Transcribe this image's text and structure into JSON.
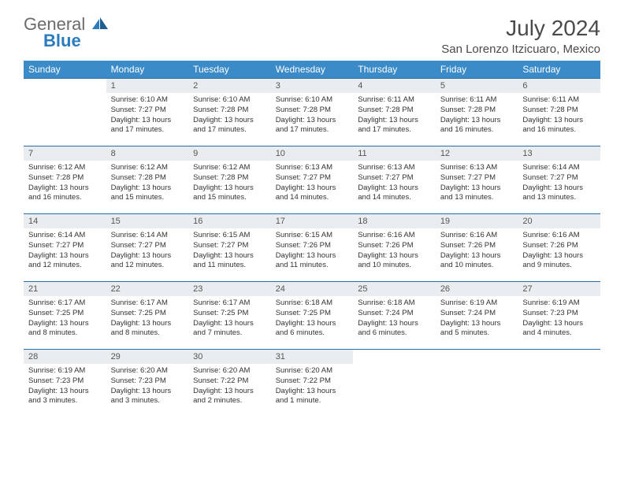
{
  "logo": {
    "part1": "General",
    "part2": "Blue"
  },
  "title": "July 2024",
  "location": "San Lorenzo Itzicuaro, Mexico",
  "colors": {
    "header_bg": "#3b8bc9",
    "header_fg": "#ffffff",
    "daynum_bg": "#e9edf0",
    "row_border": "#2b6ca3",
    "logo_gray": "#6b6b6b",
    "logo_blue": "#2b7bbf",
    "text": "#333333",
    "background": "#ffffff"
  },
  "typography": {
    "title_fontsize": 28,
    "location_fontsize": 15,
    "weekday_fontsize": 12,
    "daynum_fontsize": 11,
    "body_fontsize": 9.5
  },
  "weekdays": [
    "Sunday",
    "Monday",
    "Tuesday",
    "Wednesday",
    "Thursday",
    "Friday",
    "Saturday"
  ],
  "weeks": [
    [
      null,
      {
        "n": "1",
        "sunrise": "Sunrise: 6:10 AM",
        "sunset": "Sunset: 7:27 PM",
        "d1": "Daylight: 13 hours",
        "d2": "and 17 minutes."
      },
      {
        "n": "2",
        "sunrise": "Sunrise: 6:10 AM",
        "sunset": "Sunset: 7:28 PM",
        "d1": "Daylight: 13 hours",
        "d2": "and 17 minutes."
      },
      {
        "n": "3",
        "sunrise": "Sunrise: 6:10 AM",
        "sunset": "Sunset: 7:28 PM",
        "d1": "Daylight: 13 hours",
        "d2": "and 17 minutes."
      },
      {
        "n": "4",
        "sunrise": "Sunrise: 6:11 AM",
        "sunset": "Sunset: 7:28 PM",
        "d1": "Daylight: 13 hours",
        "d2": "and 17 minutes."
      },
      {
        "n": "5",
        "sunrise": "Sunrise: 6:11 AM",
        "sunset": "Sunset: 7:28 PM",
        "d1": "Daylight: 13 hours",
        "d2": "and 16 minutes."
      },
      {
        "n": "6",
        "sunrise": "Sunrise: 6:11 AM",
        "sunset": "Sunset: 7:28 PM",
        "d1": "Daylight: 13 hours",
        "d2": "and 16 minutes."
      }
    ],
    [
      {
        "n": "7",
        "sunrise": "Sunrise: 6:12 AM",
        "sunset": "Sunset: 7:28 PM",
        "d1": "Daylight: 13 hours",
        "d2": "and 16 minutes."
      },
      {
        "n": "8",
        "sunrise": "Sunrise: 6:12 AM",
        "sunset": "Sunset: 7:28 PM",
        "d1": "Daylight: 13 hours",
        "d2": "and 15 minutes."
      },
      {
        "n": "9",
        "sunrise": "Sunrise: 6:12 AM",
        "sunset": "Sunset: 7:28 PM",
        "d1": "Daylight: 13 hours",
        "d2": "and 15 minutes."
      },
      {
        "n": "10",
        "sunrise": "Sunrise: 6:13 AM",
        "sunset": "Sunset: 7:27 PM",
        "d1": "Daylight: 13 hours",
        "d2": "and 14 minutes."
      },
      {
        "n": "11",
        "sunrise": "Sunrise: 6:13 AM",
        "sunset": "Sunset: 7:27 PM",
        "d1": "Daylight: 13 hours",
        "d2": "and 14 minutes."
      },
      {
        "n": "12",
        "sunrise": "Sunrise: 6:13 AM",
        "sunset": "Sunset: 7:27 PM",
        "d1": "Daylight: 13 hours",
        "d2": "and 13 minutes."
      },
      {
        "n": "13",
        "sunrise": "Sunrise: 6:14 AM",
        "sunset": "Sunset: 7:27 PM",
        "d1": "Daylight: 13 hours",
        "d2": "and 13 minutes."
      }
    ],
    [
      {
        "n": "14",
        "sunrise": "Sunrise: 6:14 AM",
        "sunset": "Sunset: 7:27 PM",
        "d1": "Daylight: 13 hours",
        "d2": "and 12 minutes."
      },
      {
        "n": "15",
        "sunrise": "Sunrise: 6:14 AM",
        "sunset": "Sunset: 7:27 PM",
        "d1": "Daylight: 13 hours",
        "d2": "and 12 minutes."
      },
      {
        "n": "16",
        "sunrise": "Sunrise: 6:15 AM",
        "sunset": "Sunset: 7:27 PM",
        "d1": "Daylight: 13 hours",
        "d2": "and 11 minutes."
      },
      {
        "n": "17",
        "sunrise": "Sunrise: 6:15 AM",
        "sunset": "Sunset: 7:26 PM",
        "d1": "Daylight: 13 hours",
        "d2": "and 11 minutes."
      },
      {
        "n": "18",
        "sunrise": "Sunrise: 6:16 AM",
        "sunset": "Sunset: 7:26 PM",
        "d1": "Daylight: 13 hours",
        "d2": "and 10 minutes."
      },
      {
        "n": "19",
        "sunrise": "Sunrise: 6:16 AM",
        "sunset": "Sunset: 7:26 PM",
        "d1": "Daylight: 13 hours",
        "d2": "and 10 minutes."
      },
      {
        "n": "20",
        "sunrise": "Sunrise: 6:16 AM",
        "sunset": "Sunset: 7:26 PM",
        "d1": "Daylight: 13 hours",
        "d2": "and 9 minutes."
      }
    ],
    [
      {
        "n": "21",
        "sunrise": "Sunrise: 6:17 AM",
        "sunset": "Sunset: 7:25 PM",
        "d1": "Daylight: 13 hours",
        "d2": "and 8 minutes."
      },
      {
        "n": "22",
        "sunrise": "Sunrise: 6:17 AM",
        "sunset": "Sunset: 7:25 PM",
        "d1": "Daylight: 13 hours",
        "d2": "and 8 minutes."
      },
      {
        "n": "23",
        "sunrise": "Sunrise: 6:17 AM",
        "sunset": "Sunset: 7:25 PM",
        "d1": "Daylight: 13 hours",
        "d2": "and 7 minutes."
      },
      {
        "n": "24",
        "sunrise": "Sunrise: 6:18 AM",
        "sunset": "Sunset: 7:25 PM",
        "d1": "Daylight: 13 hours",
        "d2": "and 6 minutes."
      },
      {
        "n": "25",
        "sunrise": "Sunrise: 6:18 AM",
        "sunset": "Sunset: 7:24 PM",
        "d1": "Daylight: 13 hours",
        "d2": "and 6 minutes."
      },
      {
        "n": "26",
        "sunrise": "Sunrise: 6:19 AM",
        "sunset": "Sunset: 7:24 PM",
        "d1": "Daylight: 13 hours",
        "d2": "and 5 minutes."
      },
      {
        "n": "27",
        "sunrise": "Sunrise: 6:19 AM",
        "sunset": "Sunset: 7:23 PM",
        "d1": "Daylight: 13 hours",
        "d2": "and 4 minutes."
      }
    ],
    [
      {
        "n": "28",
        "sunrise": "Sunrise: 6:19 AM",
        "sunset": "Sunset: 7:23 PM",
        "d1": "Daylight: 13 hours",
        "d2": "and 3 minutes."
      },
      {
        "n": "29",
        "sunrise": "Sunrise: 6:20 AM",
        "sunset": "Sunset: 7:23 PM",
        "d1": "Daylight: 13 hours",
        "d2": "and 3 minutes."
      },
      {
        "n": "30",
        "sunrise": "Sunrise: 6:20 AM",
        "sunset": "Sunset: 7:22 PM",
        "d1": "Daylight: 13 hours",
        "d2": "and 2 minutes."
      },
      {
        "n": "31",
        "sunrise": "Sunrise: 6:20 AM",
        "sunset": "Sunset: 7:22 PM",
        "d1": "Daylight: 13 hours",
        "d2": "and 1 minute."
      },
      null,
      null,
      null
    ]
  ]
}
